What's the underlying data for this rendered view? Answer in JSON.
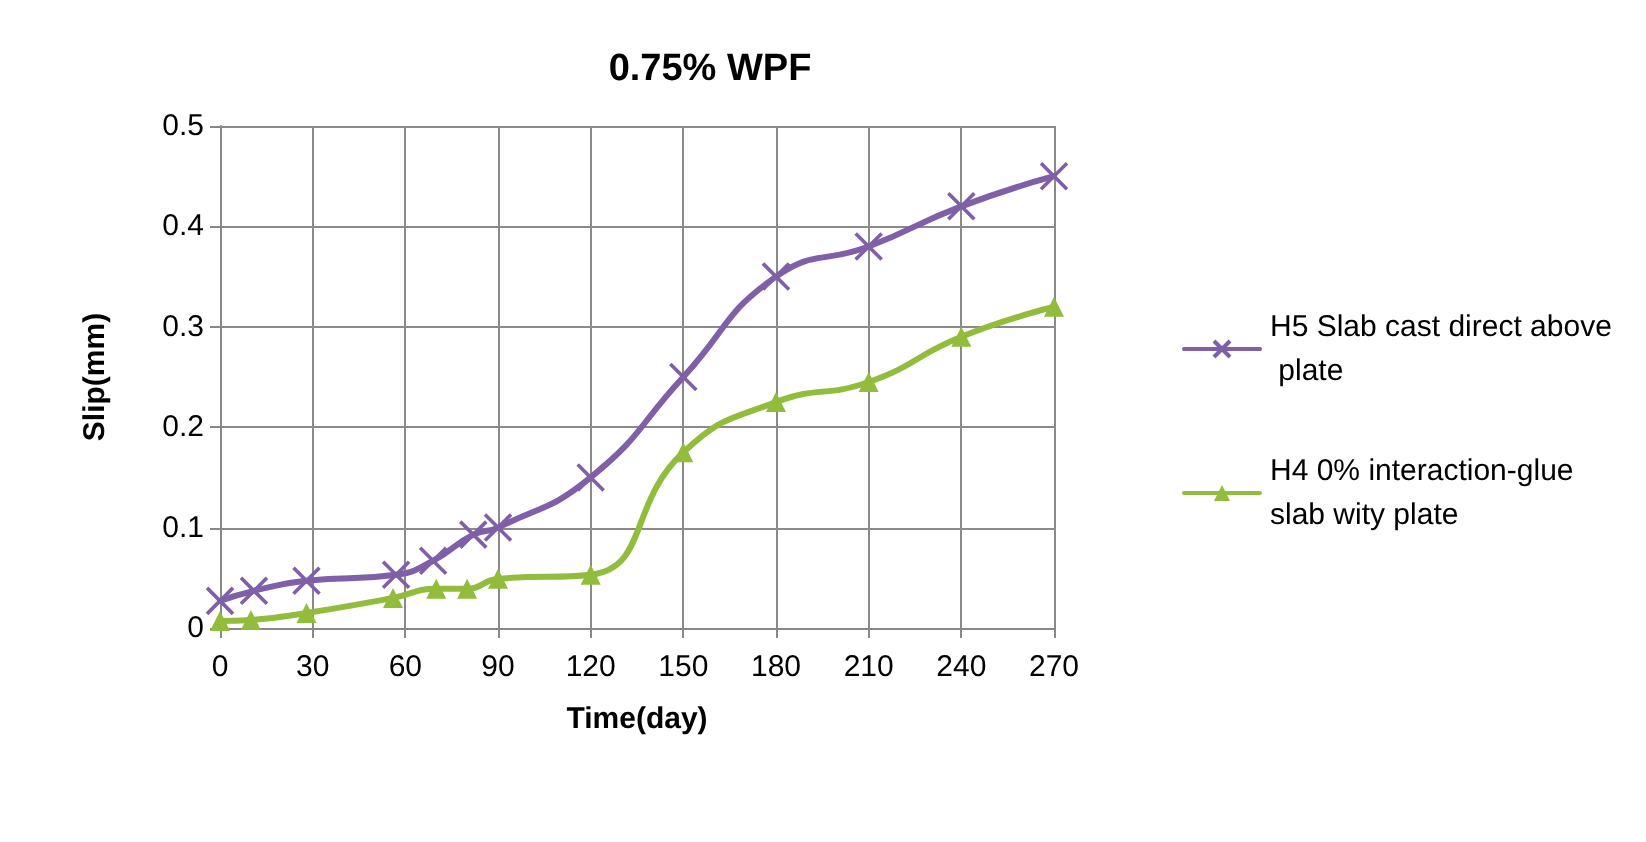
{
  "chart_data": {
    "type": "line",
    "title": "0.75% WPF",
    "xlabel": "Time(day)",
    "ylabel": "Slip(mm)",
    "xlim": [
      0,
      270
    ],
    "xticks": [
      0,
      30,
      60,
      90,
      120,
      150,
      180,
      210,
      240,
      270
    ],
    "ylim": [
      0,
      0.5
    ],
    "yticks": [
      0,
      0.1,
      0.2,
      0.3,
      0.4,
      0.5
    ],
    "grid": true,
    "legend": "right",
    "line_style": "solid",
    "series": [
      {
        "name": "H5 Slab cast direct above plate",
        "color": "#7f5fa8",
        "marker": "cross",
        "x": [
          0,
          11,
          28,
          57,
          69,
          82,
          90,
          120,
          150,
          180,
          210,
          240,
          270
        ],
        "values": [
          0.027,
          0.037,
          0.047,
          0.053,
          0.067,
          0.093,
          0.1,
          0.15,
          0.25,
          0.35,
          0.38,
          0.42,
          0.45
        ]
      },
      {
        "name": "H4 0% interaction-glue slab wity plate",
        "color": "#92bc3c",
        "marker": "triangle",
        "x": [
          0,
          10,
          28,
          56,
          70,
          80,
          90,
          120,
          150,
          180,
          210,
          240,
          270
        ],
        "values": [
          0.007,
          0.008,
          0.015,
          0.03,
          0.039,
          0.039,
          0.049,
          0.053,
          0.175,
          0.225,
          0.245,
          0.29,
          0.32
        ]
      }
    ]
  }
}
